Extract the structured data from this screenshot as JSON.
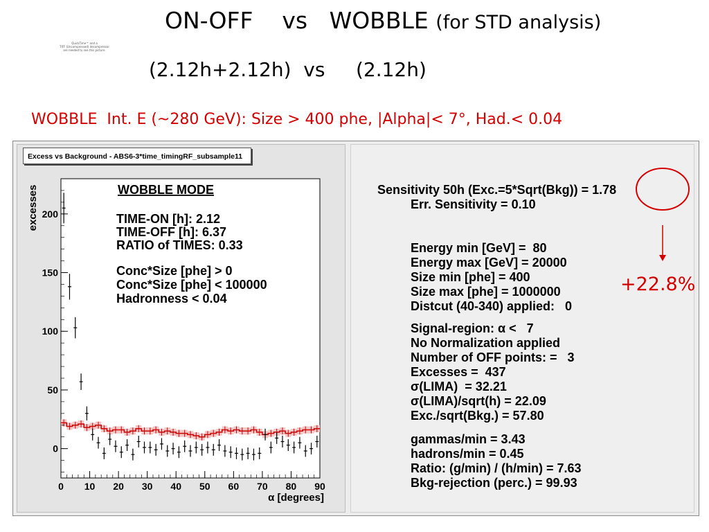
{
  "slide": {
    "title_line1_main": "ON-OFF    vs   WOBBLE ",
    "title_line1_small": "(for STD analysis)",
    "title_line2": "(2.12h+2.12h)  vs     (2.12h)",
    "quicktime_notice": [
      "QuickTime™ and a",
      "TIFF (Uncompressed) decompressor",
      "are needed to see this picture."
    ],
    "subtitle": "WOBBLE  Int. E (~280 GeV): Size > 400 phe, |Alpha|< 7°, Had.< 0.04",
    "annotation_percent": "+22.8%",
    "colors": {
      "red": "#d40000",
      "hist_fill": "#f2c6c6",
      "hist_line": "#cc0000"
    }
  },
  "plot_panel": {
    "box_title": "Excess vs Background - ABS6-3*time_timingRF_subsample11",
    "legend_lines": [
      "WOBBLE MODE",
      "TIME-ON [h]: 2.12",
      "TIME-OFF [h]: 6.37",
      "RATIO of TIMES: 0.33",
      "Conc*Size [phe] >   0",
      "Conc*Size [phe] < 100000",
      "Hadronness < 0.04"
    ]
  },
  "info_panel": {
    "sensitivity": "Sensitivity 50h (Exc.=5*Sqrt(Bkg)) = 1.78",
    "err_sensitivity": "Err. Sensitivity = 0.10",
    "energy_lines": [
      "Energy min [GeV] =  80",
      "Energy max [GeV] = 20000",
      "Size min [phe] = 400",
      "Size max [phe] = 1000000",
      "Distcut (40-340) applied:   0"
    ],
    "signal_lines": [
      "Signal-region: α <   7",
      "No Normalization applied",
      "Number of OFF points: =   3",
      "Excesses =  437",
      "σ(LIMA)  = 32.21",
      "σ(LIMA)/sqrt(h) = 22.09",
      "Exc./sqrt(Bkg.) = 57.80"
    ],
    "gamma_lines": [
      "gammas/min = 3.43",
      "hadrons/min = 0.45",
      "Ratio: (g/min) / (h/min) = 7.63",
      "Bkg-rejection (perc.) = 99.93"
    ]
  },
  "chart_data": {
    "type": "histogram",
    "xlabel": "α [degrees]",
    "ylabel": "excesses",
    "xlim": [
      0,
      90
    ],
    "ylim": [
      -25,
      230
    ],
    "x_ticks": [
      0,
      10,
      20,
      30,
      40,
      50,
      60,
      70,
      80,
      90
    ],
    "y_ticks": [
      0,
      50,
      100,
      150,
      200
    ],
    "bin_width": 2,
    "series": [
      {
        "kind": "excess_points",
        "x": [
          1,
          3,
          5,
          7,
          9,
          11,
          13,
          15,
          17,
          19,
          21,
          23,
          25,
          27,
          29,
          31,
          33,
          35,
          37,
          39,
          41,
          43,
          45,
          47,
          49,
          51,
          53,
          55,
          57,
          59,
          61,
          63,
          65,
          67,
          69,
          71,
          73,
          75,
          77,
          79,
          81,
          83,
          85,
          87,
          89
        ],
        "y": [
          205,
          138,
          103,
          57,
          30,
          12,
          5,
          -4,
          8,
          2,
          -3,
          3,
          -5,
          6,
          1,
          1,
          -1,
          4,
          -2,
          0,
          -3,
          2,
          -2,
          1,
          -1,
          1,
          -1,
          3,
          -2,
          -3,
          -4,
          -5,
          -4,
          -5,
          -4,
          12,
          1,
          9,
          6,
          3,
          1,
          5,
          -2,
          0,
          6
        ],
        "yerr": [
          13,
          11,
          9,
          7,
          6,
          5,
          5,
          5,
          5,
          5,
          5,
          5,
          5,
          5,
          5,
          5,
          5,
          5,
          5,
          5,
          5,
          5,
          5,
          5,
          5,
          5,
          5,
          5,
          5,
          5,
          5,
          5,
          5,
          5,
          5,
          5,
          5,
          5,
          5,
          5,
          5,
          5,
          5,
          5,
          5
        ]
      },
      {
        "kind": "background_histogram",
        "x": [
          1,
          3,
          5,
          7,
          9,
          11,
          13,
          15,
          17,
          19,
          21,
          23,
          25,
          27,
          29,
          31,
          33,
          35,
          37,
          39,
          41,
          43,
          45,
          47,
          49,
          51,
          53,
          55,
          57,
          59,
          61,
          63,
          65,
          67,
          69,
          71,
          73,
          75,
          77,
          79,
          81,
          83,
          85,
          87,
          89
        ],
        "y": [
          22,
          19,
          20,
          21,
          18,
          19,
          20,
          17,
          15,
          16,
          16,
          14,
          15,
          17,
          15,
          15,
          16,
          14,
          15,
          14,
          13,
          13,
          12,
          11,
          10,
          12,
          13,
          14,
          16,
          15,
          16,
          15,
          15,
          16,
          14,
          12,
          13,
          14,
          15,
          13,
          14,
          15,
          16,
          16,
          17
        ],
        "yerr": [
          3,
          3,
          3,
          3,
          3,
          3,
          3,
          3,
          3,
          3,
          3,
          3,
          3,
          3,
          3,
          3,
          3,
          3,
          3,
          3,
          3,
          3,
          3,
          3,
          3,
          3,
          3,
          3,
          3,
          3,
          3,
          3,
          3,
          3,
          3,
          3,
          3,
          3,
          3,
          3,
          3,
          3,
          3,
          3,
          3
        ]
      }
    ]
  }
}
